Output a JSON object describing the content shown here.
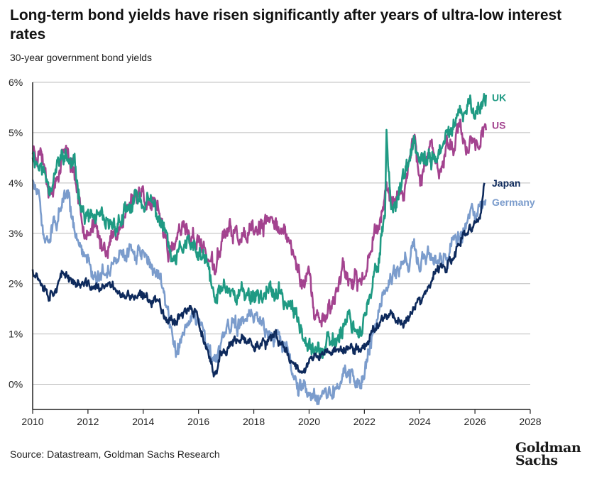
{
  "header": {
    "title": "Long-term bond yields have risen significantly after years of ultra-low interest rates",
    "subtitle": "30-year government bond yields"
  },
  "footer": {
    "source": "Source: Datastream, Goldman Sachs Research",
    "logo_line1": "Goldman",
    "logo_line2": "Sachs"
  },
  "colors": {
    "UK": "#1f9a83",
    "US": "#a3438f",
    "Japan": "#0e2a5c",
    "Germany": "#7b9ccc",
    "grid": "#bdbdbd",
    "axis": "#222222"
  },
  "chart_data": {
    "type": "line",
    "title": "",
    "xlabel": "",
    "ylabel": "",
    "xlim": [
      2010,
      2028
    ],
    "ylim": [
      -0.5,
      6
    ],
    "x_ticks": [
      "2010",
      "2012",
      "2014",
      "2016",
      "2018",
      "2020",
      "2022",
      "2024",
      "2026",
      "2028"
    ],
    "y_ticks": [
      "0%",
      "1%",
      "2%",
      "3%",
      "4%",
      "5%",
      "6%"
    ],
    "y_tick_values": [
      0,
      1,
      2,
      3,
      4,
      5,
      6
    ],
    "grid": "horizontal",
    "series": [
      {
        "name": "UK",
        "points": [
          [
            2010.0,
            4.6
          ],
          [
            2010.3,
            4.3
          ],
          [
            2010.6,
            4.0
          ],
          [
            2010.9,
            4.3
          ],
          [
            2011.1,
            4.55
          ],
          [
            2011.5,
            4.3
          ],
          [
            2011.9,
            3.3
          ],
          [
            2012.3,
            3.3
          ],
          [
            2012.7,
            3.05
          ],
          [
            2013.0,
            3.2
          ],
          [
            2013.4,
            3.35
          ],
          [
            2013.8,
            3.7
          ],
          [
            2014.0,
            3.65
          ],
          [
            2014.4,
            3.5
          ],
          [
            2014.8,
            3.0
          ],
          [
            2015.1,
            2.3
          ],
          [
            2015.5,
            2.8
          ],
          [
            2015.9,
            2.6
          ],
          [
            2016.3,
            2.4
          ],
          [
            2016.6,
            1.6
          ],
          [
            2016.9,
            2.0
          ],
          [
            2017.4,
            1.8
          ],
          [
            2017.9,
            1.8
          ],
          [
            2018.4,
            1.8
          ],
          [
            2018.8,
            1.8
          ],
          [
            2019.3,
            1.6
          ],
          [
            2019.7,
            1.1
          ],
          [
            2020.0,
            1.0
          ],
          [
            2020.25,
            0.7
          ],
          [
            2020.6,
            0.7
          ],
          [
            2021.0,
            0.9
          ],
          [
            2021.4,
            1.4
          ],
          [
            2021.8,
            1.05
          ],
          [
            2022.2,
            1.6
          ],
          [
            2022.5,
            2.5
          ],
          [
            2022.75,
            3.5
          ],
          [
            2022.8,
            5.0
          ],
          [
            2022.95,
            3.5
          ],
          [
            2023.2,
            3.8
          ],
          [
            2023.6,
            4.3
          ],
          [
            2023.8,
            4.85
          ],
          [
            2024.0,
            4.3
          ],
          [
            2024.4,
            4.5
          ],
          [
            2024.8,
            4.6
          ],
          [
            2025.1,
            5.05
          ],
          [
            2025.4,
            5.25
          ],
          [
            2025.7,
            5.4
          ],
          [
            2025.9,
            5.6
          ],
          [
            2026.1,
            5.45
          ],
          [
            2026.4,
            5.75
          ]
        ]
      },
      {
        "name": "US",
        "points": [
          [
            2010.0,
            4.65
          ],
          [
            2010.3,
            4.65
          ],
          [
            2010.7,
            3.8
          ],
          [
            2010.9,
            4.2
          ],
          [
            2011.1,
            4.7
          ],
          [
            2011.5,
            4.3
          ],
          [
            2011.8,
            3.2
          ],
          [
            2012.2,
            3.15
          ],
          [
            2012.5,
            2.7
          ],
          [
            2012.9,
            2.9
          ],
          [
            2013.2,
            3.2
          ],
          [
            2013.6,
            3.7
          ],
          [
            2013.9,
            3.9
          ],
          [
            2014.3,
            3.55
          ],
          [
            2014.7,
            3.2
          ],
          [
            2015.0,
            2.5
          ],
          [
            2015.3,
            3.0
          ],
          [
            2015.6,
            3.0
          ],
          [
            2016.0,
            2.85
          ],
          [
            2016.3,
            2.6
          ],
          [
            2016.6,
            2.2
          ],
          [
            2016.9,
            3.0
          ],
          [
            2017.3,
            3.0
          ],
          [
            2017.7,
            2.8
          ],
          [
            2018.1,
            3.05
          ],
          [
            2018.4,
            3.1
          ],
          [
            2018.8,
            3.35
          ],
          [
            2019.0,
            3.0
          ],
          [
            2019.3,
            2.8
          ],
          [
            2019.7,
            2.1
          ],
          [
            2020.0,
            2.2
          ],
          [
            2020.2,
            1.3
          ],
          [
            2020.6,
            1.4
          ],
          [
            2021.0,
            1.8
          ],
          [
            2021.2,
            2.4
          ],
          [
            2021.6,
            1.9
          ],
          [
            2022.0,
            2.1
          ],
          [
            2022.3,
            3.0
          ],
          [
            2022.6,
            3.3
          ],
          [
            2022.8,
            4.0
          ],
          [
            2023.0,
            3.6
          ],
          [
            2023.4,
            3.8
          ],
          [
            2023.8,
            5.0
          ],
          [
            2024.0,
            4.1
          ],
          [
            2024.4,
            4.6
          ],
          [
            2024.7,
            4.1
          ],
          [
            2025.0,
            4.7
          ],
          [
            2025.4,
            5.0
          ],
          [
            2025.7,
            4.75
          ],
          [
            2026.0,
            4.85
          ],
          [
            2026.2,
            4.9
          ],
          [
            2026.4,
            5.05
          ]
        ]
      },
      {
        "name": "Japan",
        "points": [
          [
            2010.0,
            2.3
          ],
          [
            2010.3,
            2.1
          ],
          [
            2010.6,
            1.8
          ],
          [
            2010.9,
            2.0
          ],
          [
            2011.2,
            2.2
          ],
          [
            2011.6,
            2.0
          ],
          [
            2012.0,
            1.95
          ],
          [
            2012.5,
            1.9
          ],
          [
            2013.0,
            1.95
          ],
          [
            2013.3,
            1.7
          ],
          [
            2013.6,
            1.75
          ],
          [
            2014.0,
            1.7
          ],
          [
            2014.5,
            1.7
          ],
          [
            2014.9,
            1.3
          ],
          [
            2015.2,
            1.3
          ],
          [
            2015.5,
            1.5
          ],
          [
            2015.9,
            1.4
          ],
          [
            2016.2,
            0.9
          ],
          [
            2016.55,
            0.1
          ],
          [
            2016.8,
            0.6
          ],
          [
            2017.2,
            0.8
          ],
          [
            2017.8,
            0.85
          ],
          [
            2018.3,
            0.8
          ],
          [
            2018.8,
            0.9
          ],
          [
            2019.2,
            0.65
          ],
          [
            2019.6,
            0.3
          ],
          [
            2019.9,
            0.4
          ],
          [
            2020.3,
            0.55
          ],
          [
            2020.8,
            0.65
          ],
          [
            2021.2,
            0.7
          ],
          [
            2021.6,
            0.68
          ],
          [
            2021.9,
            0.7
          ],
          [
            2022.2,
            0.95
          ],
          [
            2022.5,
            1.2
          ],
          [
            2022.8,
            1.45
          ],
          [
            2023.1,
            1.35
          ],
          [
            2023.5,
            1.2
          ],
          [
            2023.8,
            1.6
          ],
          [
            2024.0,
            1.6
          ],
          [
            2024.3,
            1.85
          ],
          [
            2024.6,
            2.25
          ],
          [
            2024.9,
            2.3
          ],
          [
            2025.2,
            2.45
          ],
          [
            2025.5,
            2.85
          ],
          [
            2025.8,
            3.05
          ],
          [
            2026.0,
            3.2
          ],
          [
            2026.2,
            3.35
          ],
          [
            2026.35,
            4.0
          ]
        ]
      },
      {
        "name": "Germany",
        "points": [
          [
            2010.0,
            4.05
          ],
          [
            2010.2,
            3.7
          ],
          [
            2010.45,
            2.8
          ],
          [
            2010.7,
            3.1
          ],
          [
            2011.0,
            3.4
          ],
          [
            2011.3,
            3.7
          ],
          [
            2011.6,
            2.8
          ],
          [
            2012.0,
            2.5
          ],
          [
            2012.4,
            2.1
          ],
          [
            2012.8,
            2.3
          ],
          [
            2013.1,
            2.5
          ],
          [
            2013.5,
            2.6
          ],
          [
            2013.9,
            2.7
          ],
          [
            2014.2,
            2.5
          ],
          [
            2014.6,
            2.0
          ],
          [
            2014.9,
            1.5
          ],
          [
            2015.2,
            0.6
          ],
          [
            2015.5,
            1.1
          ],
          [
            2015.9,
            1.3
          ],
          [
            2016.2,
            0.9
          ],
          [
            2016.55,
            0.35
          ],
          [
            2016.9,
            0.9
          ],
          [
            2017.3,
            1.2
          ],
          [
            2017.7,
            1.3
          ],
          [
            2018.1,
            1.3
          ],
          [
            2018.5,
            1.1
          ],
          [
            2018.9,
            1.0
          ],
          [
            2019.2,
            0.7
          ],
          [
            2019.6,
            -0.1
          ],
          [
            2019.9,
            0.0
          ],
          [
            2020.2,
            -0.2
          ],
          [
            2020.6,
            -0.15
          ],
          [
            2021.0,
            -0.1
          ],
          [
            2021.3,
            0.3
          ],
          [
            2021.7,
            0.0
          ],
          [
            2022.0,
            0.2
          ],
          [
            2022.3,
            1.0
          ],
          [
            2022.6,
            1.7
          ],
          [
            2022.9,
            2.0
          ],
          [
            2023.2,
            2.3
          ],
          [
            2023.6,
            2.4
          ],
          [
            2023.8,
            2.9
          ],
          [
            2024.0,
            2.3
          ],
          [
            2024.3,
            2.6
          ],
          [
            2024.7,
            2.5
          ],
          [
            2025.0,
            2.5
          ],
          [
            2025.2,
            2.9
          ],
          [
            2025.5,
            2.95
          ],
          [
            2025.8,
            3.3
          ],
          [
            2026.0,
            3.3
          ],
          [
            2026.2,
            3.5
          ],
          [
            2026.4,
            3.65
          ]
        ]
      }
    ],
    "labels": [
      {
        "series": "UK",
        "text": "UK",
        "y": 5.7
      },
      {
        "series": "US",
        "text": "US",
        "y": 5.15
      },
      {
        "series": "Japan",
        "text": "Japan",
        "y": 4.0
      },
      {
        "series": "Germany",
        "text": "Germany",
        "y": 3.62
      }
    ]
  }
}
